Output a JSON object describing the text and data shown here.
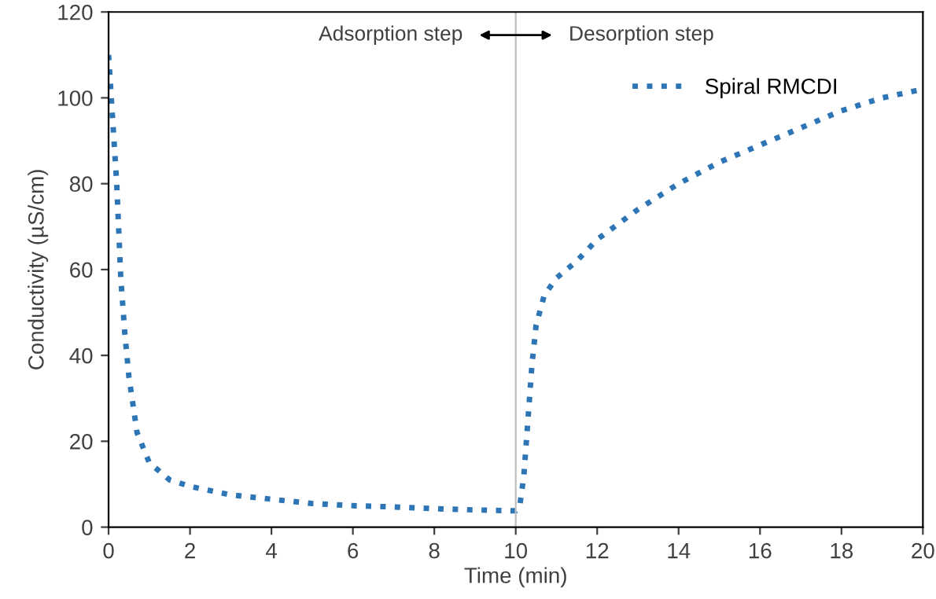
{
  "chart_data": {
    "type": "line",
    "xlabel": "Time (min)",
    "ylabel": "Conductivity (µS/cm)",
    "xlim": [
      0,
      20
    ],
    "xticks": [
      0,
      2,
      4,
      6,
      8,
      10,
      12,
      14,
      16,
      18,
      20
    ],
    "ylim": [
      0,
      120
    ],
    "yticks": [
      0,
      20,
      40,
      60,
      80,
      100,
      120
    ],
    "series": [
      {
        "name": "Spiral RMCDI",
        "color": "#2e75b6",
        "x": [
          0,
          0.1,
          0.2,
          0.3,
          0.4,
          0.5,
          0.7,
          1.0,
          1.5,
          2,
          3,
          4,
          5,
          6,
          7,
          8,
          9,
          10,
          10.1,
          10.2,
          10.3,
          10.4,
          10.5,
          10.7,
          11,
          11.5,
          12,
          13,
          14,
          15,
          16,
          17,
          18,
          19,
          20
        ],
        "values": [
          110,
          95,
          80,
          58,
          45,
          35,
          22,
          15,
          11,
          9.5,
          7.5,
          6.5,
          5.5,
          5,
          4.7,
          4.3,
          4,
          3.8,
          5,
          12,
          25,
          38,
          47,
          54,
          58,
          62,
          67,
          74,
          80,
          85,
          89,
          93,
          97,
          100,
          102
        ]
      }
    ],
    "ref_lines": [
      {
        "axis": "x",
        "value": 10,
        "color": "#bfbfbf"
      }
    ],
    "annotations": [
      "Adsorption step",
      "Desorption step"
    ],
    "line_style": "dotted",
    "legend": "top right",
    "grid": false
  }
}
